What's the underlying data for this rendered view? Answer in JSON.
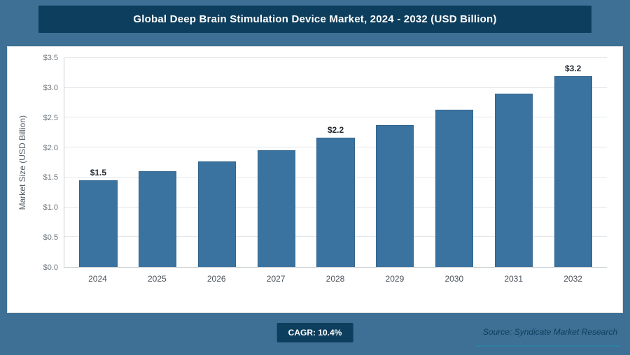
{
  "header": {
    "title": "Global Deep Brain Stimulation Device Market, 2024 - 2032 (USD Billion)"
  },
  "footer": {
    "cagr_label": "CAGR: 10.4%",
    "source": "Source: Syndicate Market Research"
  },
  "colors": {
    "page_background": "#3e7095",
    "title_bar": "#0e3e5d",
    "bar_fill": "#3a72a0",
    "badge": "#0e3e5d",
    "source_underline": "#2e7fa3"
  },
  "chart_data": {
    "type": "bar",
    "title": "Global Deep Brain Stimulation Device Market, 2024 - 2032 (USD Billion)",
    "xlabel": "",
    "ylabel": "Market Size (USD Billion)",
    "categories": [
      "2024",
      "2025",
      "2026",
      "2027",
      "2028",
      "2029",
      "2030",
      "2031",
      "2032"
    ],
    "values": [
      1.45,
      1.6,
      1.77,
      1.95,
      2.16,
      2.38,
      2.63,
      2.9,
      3.2
    ],
    "data_labels": [
      "$1.5",
      "",
      "",
      "",
      "$2.2",
      "",
      "",
      "",
      "$3.2"
    ],
    "ylim": [
      0,
      3.5
    ],
    "yticks": [
      "$0.0",
      "$0.5",
      "$1.0",
      "$1.5",
      "$2.0",
      "$2.5",
      "$3.0",
      "$3.5"
    ],
    "grid": true,
    "legend": "none",
    "cagr": "10.4%"
  }
}
